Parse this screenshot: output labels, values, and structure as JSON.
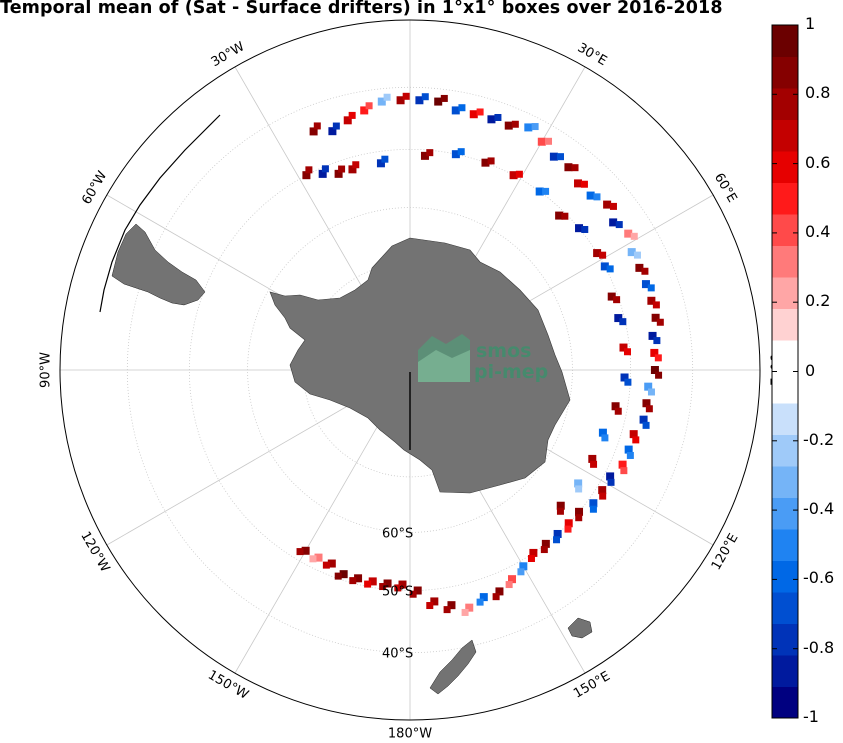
{
  "title": "Temporal mean of (Sat - Surface drifters) in 1°x1° boxes over 2016-2018",
  "watermark": {
    "line1": "smos",
    "line2": "pi-mep",
    "color": "#3f8f6d"
  },
  "map": {
    "projection": "south polar stereographic",
    "land_color": "#737373",
    "grid_color": "#c8c8c8",
    "longitude_labels": [
      {
        "text": "30°W",
        "lon": -30
      },
      {
        "text": "30°E",
        "lon": 30
      },
      {
        "text": "60°W",
        "lon": -60
      },
      {
        "text": "60°E",
        "lon": 60
      },
      {
        "text": "90°W",
        "lon": -90
      },
      {
        "text": "90°E",
        "lon": 90
      },
      {
        "text": "120°W",
        "lon": -120
      },
      {
        "text": "120°E",
        "lon": 120
      },
      {
        "text": "150°W",
        "lon": -150
      },
      {
        "text": "150°E",
        "lon": 150
      },
      {
        "text": "180°W",
        "lon": 180
      }
    ],
    "latitude_labels": [
      {
        "text": "60°S",
        "lat": -60
      },
      {
        "text": "50°S",
        "lat": -50
      },
      {
        "text": "40°S",
        "lat": -40
      }
    ]
  },
  "colorbar": {
    "min": -1,
    "max": 1,
    "tick_labels": [
      "1",
      "0.8",
      "0.6",
      "0.4",
      "0.2",
      "0",
      "-0.2",
      "-0.4",
      "-0.6",
      "-0.8",
      "-1"
    ],
    "colors": [
      "#000080",
      "#001a9e",
      "#0033b8",
      "#004fd1",
      "#0068e6",
      "#1f83f2",
      "#4a9cf5",
      "#75b4f7",
      "#9fcaf9",
      "#c9e0fb",
      "#ffffff",
      "#ffffff",
      "#ffd2d2",
      "#ffa6a6",
      "#ff7a7a",
      "#ff4a4a",
      "#ff1a1a",
      "#e60000",
      "#c40000",
      "#a30000",
      "#850000",
      "#6b0000"
    ]
  },
  "chart_data": {
    "type": "heatmap",
    "title": "Temporal mean of (Sat - Surface drifters) in 1°x1° boxes over 2016-2018",
    "value_range": [
      -1,
      1
    ],
    "cells_note": "",
    "cells": [
      {
        "lon": -22,
        "lat": -44,
        "v": 0.9
      },
      {
        "lon": -18,
        "lat": -45,
        "v": -0.9
      },
      {
        "lon": -14,
        "lat": -44,
        "v": 0.7
      },
      {
        "lon": -10,
        "lat": -43,
        "v": 0.5
      },
      {
        "lon": -6,
        "lat": -42,
        "v": -0.3
      },
      {
        "lon": -2,
        "lat": -42,
        "v": 0.8
      },
      {
        "lon": 2,
        "lat": -42,
        "v": -0.8
      },
      {
        "lon": 6,
        "lat": -42,
        "v": 1.0
      },
      {
        "lon": 10,
        "lat": -43,
        "v": -0.7
      },
      {
        "lon": 14,
        "lat": -43,
        "v": 0.6
      },
      {
        "lon": 18,
        "lat": -43,
        "v": -0.9
      },
      {
        "lon": 22,
        "lat": -43,
        "v": 0.9
      },
      {
        "lon": 26,
        "lat": -42,
        "v": -0.5
      },
      {
        "lon": 30,
        "lat": -43,
        "v": 0.4
      },
      {
        "lon": 34,
        "lat": -44,
        "v": -0.8
      },
      {
        "lon": 38,
        "lat": -44,
        "v": 0.9
      },
      {
        "lon": 42,
        "lat": -45,
        "v": 0.7
      },
      {
        "lon": 46,
        "lat": -45,
        "v": -0.6
      },
      {
        "lon": 50,
        "lat": -44,
        "v": 0.8
      },
      {
        "lon": 54,
        "lat": -45,
        "v": -0.9
      },
      {
        "lon": 58,
        "lat": -44,
        "v": 0.3
      },
      {
        "lon": 62,
        "lat": -45,
        "v": -0.3
      },
      {
        "lon": 66,
        "lat": -45,
        "v": 0.9
      },
      {
        "lon": 70,
        "lat": -45,
        "v": -0.7
      },
      {
        "lon": 74,
        "lat": -45,
        "v": 0.8
      },
      {
        "lon": 78,
        "lat": -45,
        "v": 0.9
      },
      {
        "lon": 82,
        "lat": -46,
        "v": -0.9
      },
      {
        "lon": 86,
        "lat": -46,
        "v": 0.6
      },
      {
        "lon": 90,
        "lat": -46,
        "v": 1.0
      },
      {
        "lon": 94,
        "lat": -47,
        "v": -0.4
      },
      {
        "lon": 98,
        "lat": -47,
        "v": 0.9
      },
      {
        "lon": 102,
        "lat": -47,
        "v": -0.8
      },
      {
        "lon": 106,
        "lat": -48,
        "v": 0.7
      },
      {
        "lon": 110,
        "lat": -48,
        "v": -0.6
      },
      {
        "lon": 114,
        "lat": -48,
        "v": 0.5
      },
      {
        "lon": 118,
        "lat": -49,
        "v": -0.9
      },
      {
        "lon": 122,
        "lat": -49,
        "v": 0.8
      },
      {
        "lon": 126,
        "lat": -49,
        "v": -0.7
      },
      {
        "lon": 130,
        "lat": -50,
        "v": 0.9
      },
      {
        "lon": 134,
        "lat": -50,
        "v": 0.6
      },
      {
        "lon": 138,
        "lat": -50,
        "v": -0.8
      },
      {
        "lon": 142,
        "lat": -50,
        "v": 0.9
      },
      {
        "lon": 146,
        "lat": -50,
        "v": 0.7
      },
      {
        "lon": 150,
        "lat": -49,
        "v": -0.5
      },
      {
        "lon": 154,
        "lat": -48,
        "v": 0.4
      },
      {
        "lon": 158,
        "lat": -47,
        "v": 0.9
      },
      {
        "lon": 162,
        "lat": -47,
        "v": -0.6
      },
      {
        "lon": 166,
        "lat": -46,
        "v": 0.3
      },
      {
        "lon": 170,
        "lat": -47,
        "v": 0.9
      },
      {
        "lon": 174,
        "lat": -48,
        "v": 0.8
      },
      {
        "lon": 178,
        "lat": -50,
        "v": 0.9
      },
      {
        "lon": -178,
        "lat": -51,
        "v": 0.8
      },
      {
        "lon": -174,
        "lat": -51,
        "v": 0.9
      },
      {
        "lon": -170,
        "lat": -51,
        "v": 0.7
      },
      {
        "lon": -166,
        "lat": -51,
        "v": 0.9
      },
      {
        "lon": -162,
        "lat": -51,
        "v": 1.0
      },
      {
        "lon": -158,
        "lat": -52,
        "v": 0.8
      },
      {
        "lon": -154,
        "lat": -52,
        "v": 0.3
      },
      {
        "lon": -150,
        "lat": -52,
        "v": 0.9
      },
      {
        "lon": 58,
        "lat": -50,
        "v": 0.8
      },
      {
        "lon": 62,
        "lat": -50,
        "v": -0.7
      },
      {
        "lon": 70,
        "lat": -51,
        "v": 0.9
      },
      {
        "lon": 76,
        "lat": -51,
        "v": -0.9
      },
      {
        "lon": 84,
        "lat": -51,
        "v": 0.7
      },
      {
        "lon": 92,
        "lat": -51,
        "v": -0.8
      },
      {
        "lon": 100,
        "lat": -52,
        "v": 0.9
      },
      {
        "lon": 108,
        "lat": -53,
        "v": -0.6
      },
      {
        "lon": 116,
        "lat": -53,
        "v": 0.8
      },
      {
        "lon": 124,
        "lat": -53,
        "v": -0.3
      },
      {
        "lon": 132,
        "lat": -53,
        "v": 0.9
      },
      {
        "lon": -28,
        "lat": -50,
        "v": 0.9
      },
      {
        "lon": -24,
        "lat": -51,
        "v": -0.9
      },
      {
        "lon": -20,
        "lat": -52,
        "v": 0.9
      },
      {
        "lon": -16,
        "lat": -52,
        "v": 0.8
      },
      {
        "lon": -8,
        "lat": -52,
        "v": -0.8
      },
      {
        "lon": 4,
        "lat": -51,
        "v": 0.9
      },
      {
        "lon": 12,
        "lat": -50,
        "v": -0.7
      },
      {
        "lon": 20,
        "lat": -50,
        "v": 0.9
      },
      {
        "lon": 28,
        "lat": -50,
        "v": 0.7
      },
      {
        "lon": 36,
        "lat": -50,
        "v": -0.6
      },
      {
        "lon": 44,
        "lat": -51,
        "v": 0.9
      },
      {
        "lon": 50,
        "lat": -50,
        "v": -0.9
      }
    ]
  }
}
